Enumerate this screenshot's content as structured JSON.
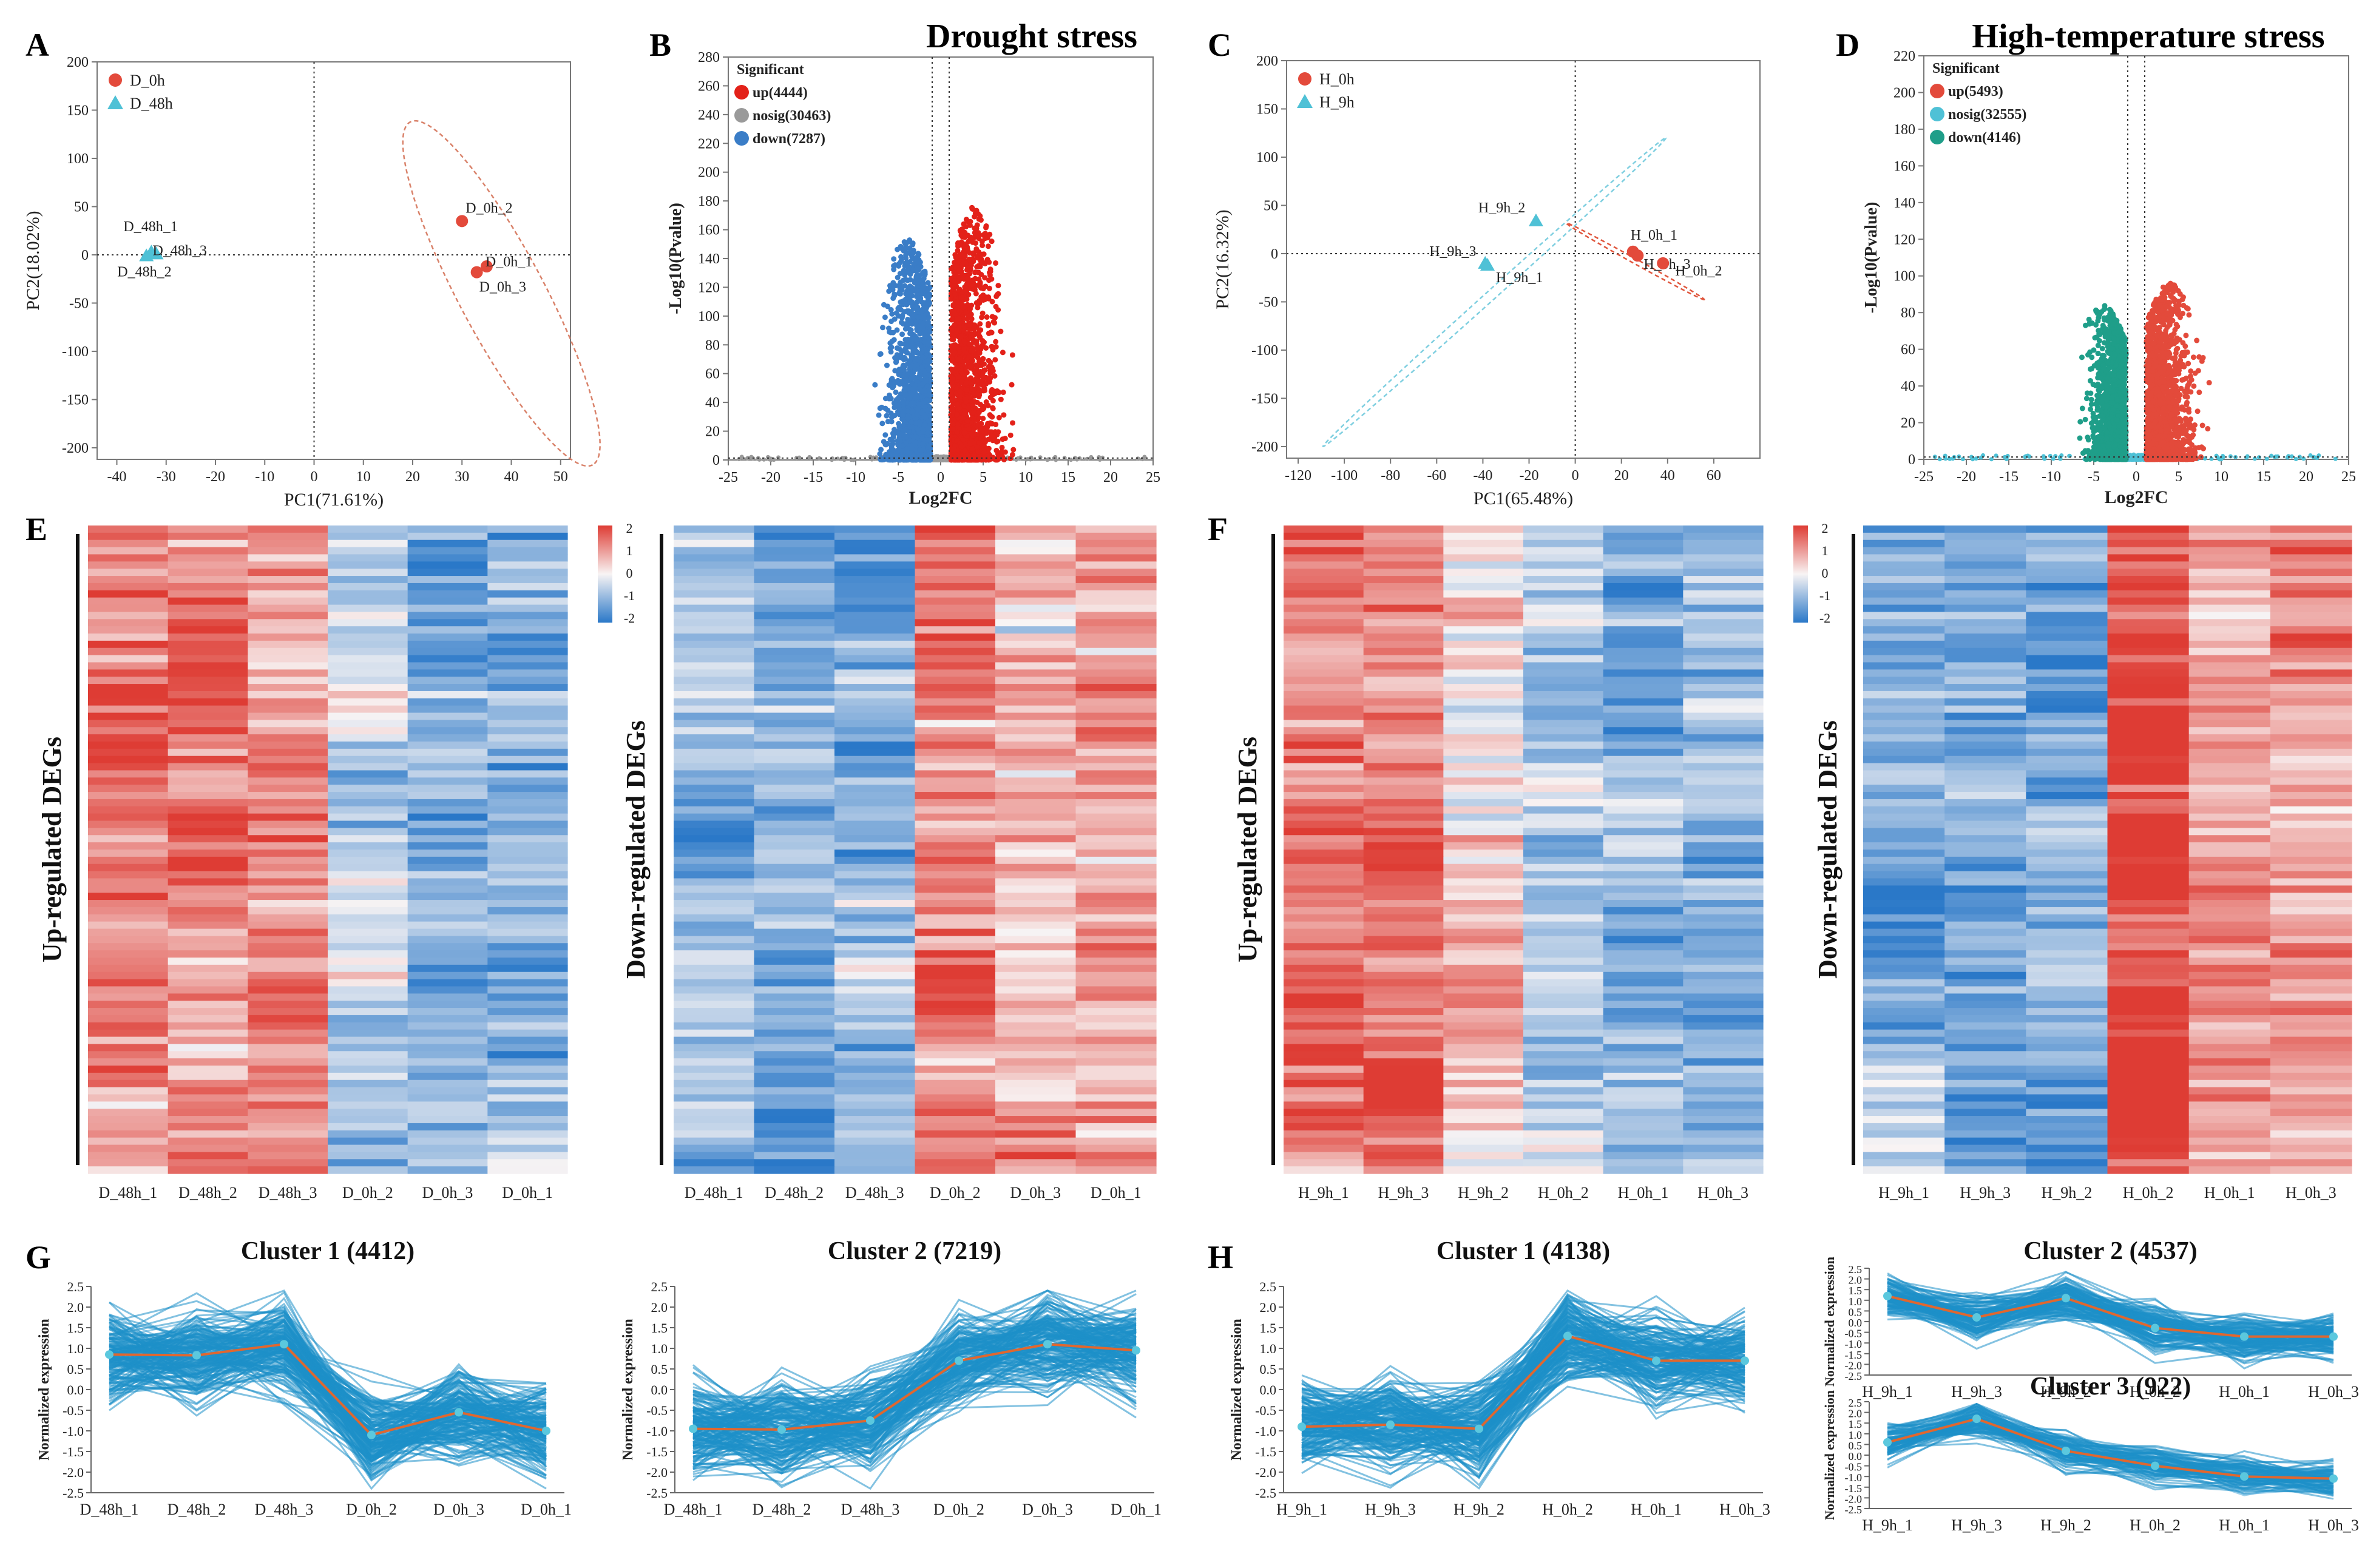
{
  "figure": {
    "headings": {
      "drought": "Drought stress",
      "heat": "High-temperature stress"
    },
    "panel_letters": [
      "A",
      "B",
      "C",
      "D",
      "E",
      "F",
      "G",
      "H"
    ],
    "colors": {
      "red": "#E34A3B",
      "cyan": "#4FC1D6",
      "blue": "#3A7DC7",
      "grey": "#9A9A9A",
      "teal": "#1F9E89",
      "red2": "#E32119",
      "line": "#1E90C8",
      "mean": "#E0672F"
    },
    "heatmap_labels": {
      "up": "Up-regulated DEGs",
      "down": "Down-regulated DEGs"
    },
    "heat_scale": [
      "2",
      "1",
      "0",
      "-1",
      "-2"
    ]
  },
  "chart_data": [
    {
      "id": "A",
      "type": "scatter",
      "xlabel": "PC1(71.61%)",
      "ylabel": "PC2(18.02%)",
      "xlim": [
        -44,
        52
      ],
      "ylim": [
        -212,
        200
      ],
      "xticks": [
        -40,
        -30,
        -20,
        -10,
        0,
        10,
        20,
        30,
        40,
        50
      ],
      "yticks": [
        -200,
        -150,
        -100,
        -50,
        0,
        50,
        100,
        150,
        200
      ],
      "legend": [
        "D_0h",
        "D_48h"
      ],
      "points": [
        {
          "label": "D_0h_2",
          "x": 30,
          "y": 35,
          "group": "D_0h"
        },
        {
          "label": "D_0h_1",
          "x": 35,
          "y": -12,
          "group": "D_0h"
        },
        {
          "label": "D_0h_3",
          "x": 33,
          "y": -18,
          "group": "D_0h"
        },
        {
          "label": "D_48h_1",
          "x": -33,
          "y": 3,
          "group": "D_48h"
        },
        {
          "label": "D_48h_3",
          "x": -32,
          "y": 1,
          "group": "D_48h"
        },
        {
          "label": "D_48h_2",
          "x": -34,
          "y": -1,
          "group": "D_48h"
        }
      ]
    },
    {
      "id": "B",
      "type": "scatter",
      "xlabel": "Log2FC",
      "ylabel": "-Log10(Pvalue)",
      "xlim": [
        -25,
        25
      ],
      "ylim": [
        0,
        280
      ],
      "xticks": [
        -25,
        -20,
        -15,
        -10,
        -5,
        0,
        5,
        10,
        15,
        20,
        25
      ],
      "yticks": [
        0,
        20,
        40,
        60,
        80,
        100,
        120,
        140,
        160,
        180,
        200,
        220,
        240,
        260,
        280
      ],
      "legend_title": "Significant",
      "legend": [
        "up(4444)",
        "nosig(30463)",
        "down(7287)"
      ]
    },
    {
      "id": "E",
      "type": "scatter",
      "xlabel": "PC1(65.48%)",
      "ylabel": "PC2(16.32%)",
      "xlim": [
        -125,
        80
      ],
      "ylim": [
        -212,
        200
      ],
      "xticks": [
        -120,
        -100,
        -80,
        -60,
        -40,
        -20,
        0,
        20,
        40,
        60
      ],
      "yticks": [
        -200,
        -150,
        -100,
        -50,
        0,
        50,
        100,
        150,
        200
      ],
      "legend": [
        "H_0h",
        "H_9h"
      ],
      "points": [
        {
          "label": "H_0h_1",
          "x": 25,
          "y": 2,
          "group": "H_0h"
        },
        {
          "label": "H_0h_3",
          "x": 27,
          "y": -2,
          "group": "H_0h"
        },
        {
          "label": "H_0h_2",
          "x": 38,
          "y": -10,
          "group": "H_0h"
        },
        {
          "label": "H_9h_2",
          "x": -17,
          "y": 34,
          "group": "H_9h"
        },
        {
          "label": "H_9h_3",
          "x": -39,
          "y": -10,
          "group": "H_9h"
        },
        {
          "label": "H_9h_1",
          "x": -38,
          "y": -12,
          "group": "H_9h"
        }
      ]
    },
    {
      "id": "F",
      "type": "scatter",
      "xlabel": "Log2FC",
      "ylabel": "-Log10(Pvalue)",
      "xlim": [
        -25,
        25
      ],
      "ylim": [
        0,
        220
      ],
      "xticks": [
        -25,
        -20,
        -15,
        -10,
        -5,
        0,
        5,
        10,
        15,
        20,
        25
      ],
      "yticks": [
        0,
        20,
        40,
        60,
        80,
        100,
        120,
        140,
        160,
        180,
        200,
        220
      ],
      "legend_title": "Significant",
      "legend": [
        "up(5493)",
        "nosig(32555)",
        "down(4146)"
      ]
    },
    {
      "id": "C_up",
      "type": "heatmap",
      "columns": [
        "D_48h_1",
        "D_48h_2",
        "D_48h_3",
        "D_0h_2",
        "D_0h_3",
        "D_0h_1"
      ],
      "column_levels": [
        1.4,
        1.2,
        1.2,
        -0.6,
        -1.4,
        -1.1
      ]
    },
    {
      "id": "C_down",
      "type": "heatmap",
      "columns": [
        "D_48h_1",
        "D_48h_2",
        "D_48h_3",
        "D_0h_2",
        "D_0h_3",
        "D_0h_1"
      ],
      "column_levels": [
        -0.9,
        -1.2,
        -1.0,
        1.3,
        0.5,
        0.9
      ]
    },
    {
      "id": "G_up",
      "type": "heatmap",
      "columns": [
        "H_9h_1",
        "H_9h_3",
        "H_9h_2",
        "H_0h_2",
        "H_0h_1",
        "H_0h_3"
      ],
      "column_levels": [
        1.3,
        1.3,
        0.3,
        -0.6,
        -1.0,
        -1.1
      ]
    },
    {
      "id": "G_down",
      "type": "heatmap",
      "columns": [
        "H_9h_1",
        "H_9h_3",
        "H_9h_2",
        "H_0h_2",
        "H_0h_1",
        "H_0h_3"
      ],
      "column_levels": [
        -1.1,
        -1.2,
        -1.2,
        1.8,
        0.8,
        0.8
      ]
    },
    {
      "id": "D1",
      "type": "line",
      "title": "Cluster 1 (4412)",
      "ylabel": "Normalized expression",
      "ylim": [
        -2.5,
        2.5
      ],
      "yticks": [
        -2.5,
        -2.0,
        -1.5,
        -1.0,
        -0.5,
        0.0,
        0.5,
        1.0,
        1.5,
        2.0,
        2.5
      ],
      "categories": [
        "D_48h_1",
        "D_48h_2",
        "D_48h_3",
        "D_0h_2",
        "D_0h_3",
        "D_0h_1"
      ],
      "values": [
        0.85,
        0.83,
        1.1,
        -1.1,
        -0.55,
        -1.0
      ]
    },
    {
      "id": "D2",
      "type": "line",
      "title": "Cluster 2 (7219)",
      "ylabel": "Normalized expression",
      "ylim": [
        -2.5,
        2.5
      ],
      "yticks": [
        -2.5,
        -2.0,
        -1.5,
        -1.0,
        -0.5,
        0.0,
        0.5,
        1.0,
        1.5,
        2.0,
        2.5
      ],
      "categories": [
        "D_48h_1",
        "D_48h_2",
        "D_48h_3",
        "D_0h_2",
        "D_0h_3",
        "D_0h_1"
      ],
      "values": [
        -0.95,
        -0.97,
        -0.75,
        0.7,
        1.1,
        0.95
      ]
    },
    {
      "id": "H1",
      "type": "line",
      "title": "Cluster 1 (4138)",
      "ylabel": "Normalized expression",
      "ylim": [
        -2.5,
        2.5
      ],
      "yticks": [
        -2.5,
        -2.0,
        -1.5,
        -1.0,
        -0.5,
        0.0,
        0.5,
        1.0,
        1.5,
        2.0,
        2.5
      ],
      "categories": [
        "H_9h_1",
        "H_9h_3",
        "H_9h_2",
        "H_0h_2",
        "H_0h_1",
        "H_0h_3"
      ],
      "values": [
        -0.9,
        -0.85,
        -0.95,
        1.3,
        0.7,
        0.7
      ]
    },
    {
      "id": "H2",
      "type": "line",
      "title": "Cluster 2 (4537)",
      "ylabel": "Normalized expression",
      "ylim": [
        -2.5,
        2.5
      ],
      "yticks": [
        -2.5,
        -2.0,
        -1.5,
        -1.0,
        -0.5,
        0.0,
        0.5,
        1.0,
        1.5,
        2.0,
        2.5
      ],
      "categories": [
        "H_9h_1",
        "H_9h_3",
        "H_9h_2",
        "H_0h_2",
        "H_0h_1",
        "H_0h_3"
      ],
      "values": [
        1.2,
        0.2,
        1.1,
        -0.3,
        -0.7,
        -0.7
      ]
    },
    {
      "id": "H3",
      "type": "line",
      "title": "Cluster 3 (922)",
      "ylabel": "Normalized expression",
      "ylim": [
        -2.5,
        2.5
      ],
      "yticks": [
        -2.5,
        -2.0,
        -1.5,
        -1.0,
        -0.5,
        0.0,
        0.5,
        1.0,
        1.5,
        2.0,
        2.5
      ],
      "categories": [
        "H_9h_1",
        "H_9h_3",
        "H_9h_2",
        "H_0h_2",
        "H_0h_1",
        "H_0h_3"
      ],
      "values": [
        0.6,
        1.7,
        0.2,
        -0.5,
        -1.0,
        -1.1
      ]
    }
  ]
}
